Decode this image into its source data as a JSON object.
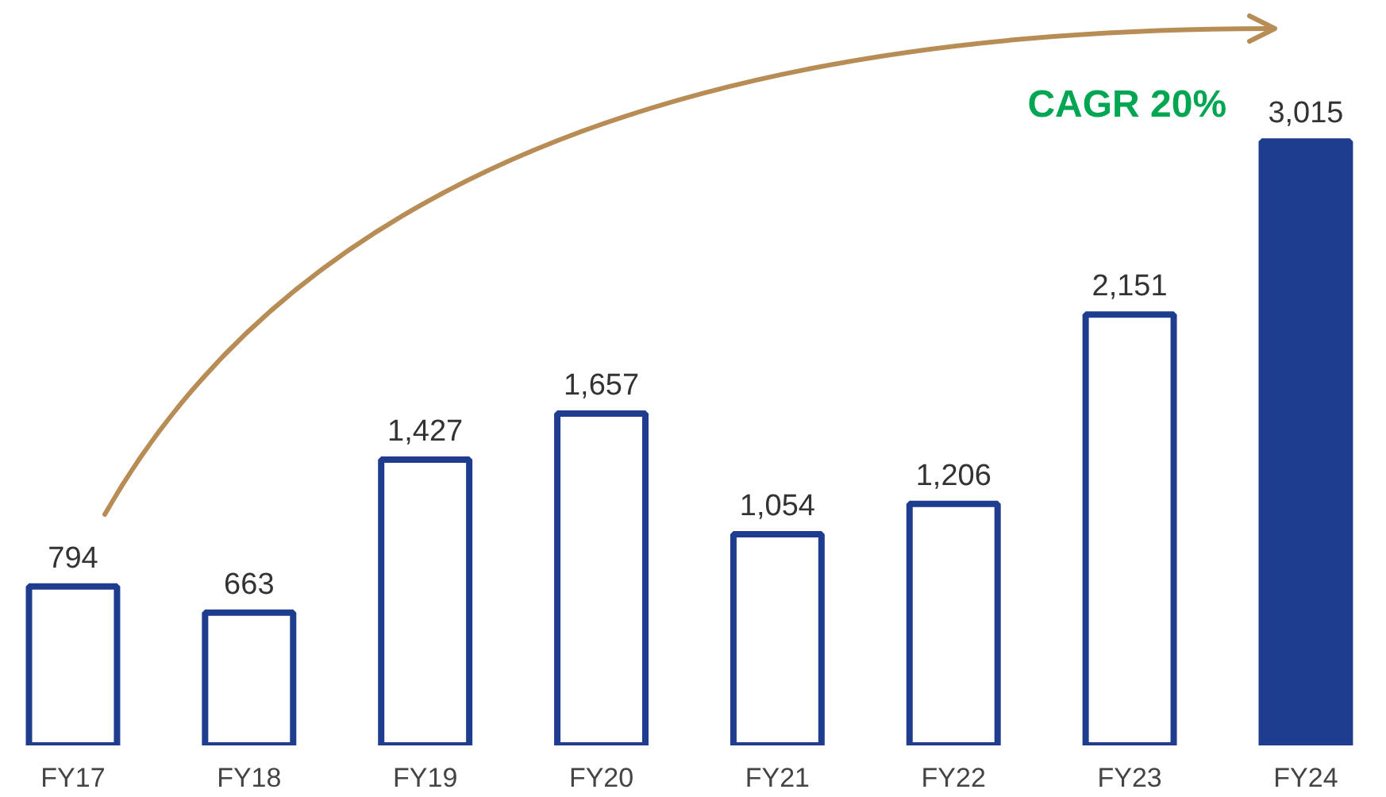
{
  "chart_data": {
    "type": "bar",
    "categories": [
      "FY17",
      "FY18",
      "FY19",
      "FY20",
      "FY21",
      "FY22",
      "FY23",
      "FY24"
    ],
    "values": [
      794,
      663,
      1427,
      1657,
      1054,
      1206,
      2151,
      3015
    ],
    "color": "#1f3d8f",
    "colors": [
      "#ffffff",
      "#ffffff",
      "#ffffff",
      "#ffffff",
      "#ffffff",
      "#ffffff",
      "#ffffff",
      "#1f3d8f"
    ],
    "value_labels": [
      "794",
      "663",
      "1,427",
      "1,657",
      "1,054",
      "1,206",
      "2,151",
      "3,015"
    ],
    "annotations": [
      "CAGR 20%"
    ],
    "grid": false
  }
}
